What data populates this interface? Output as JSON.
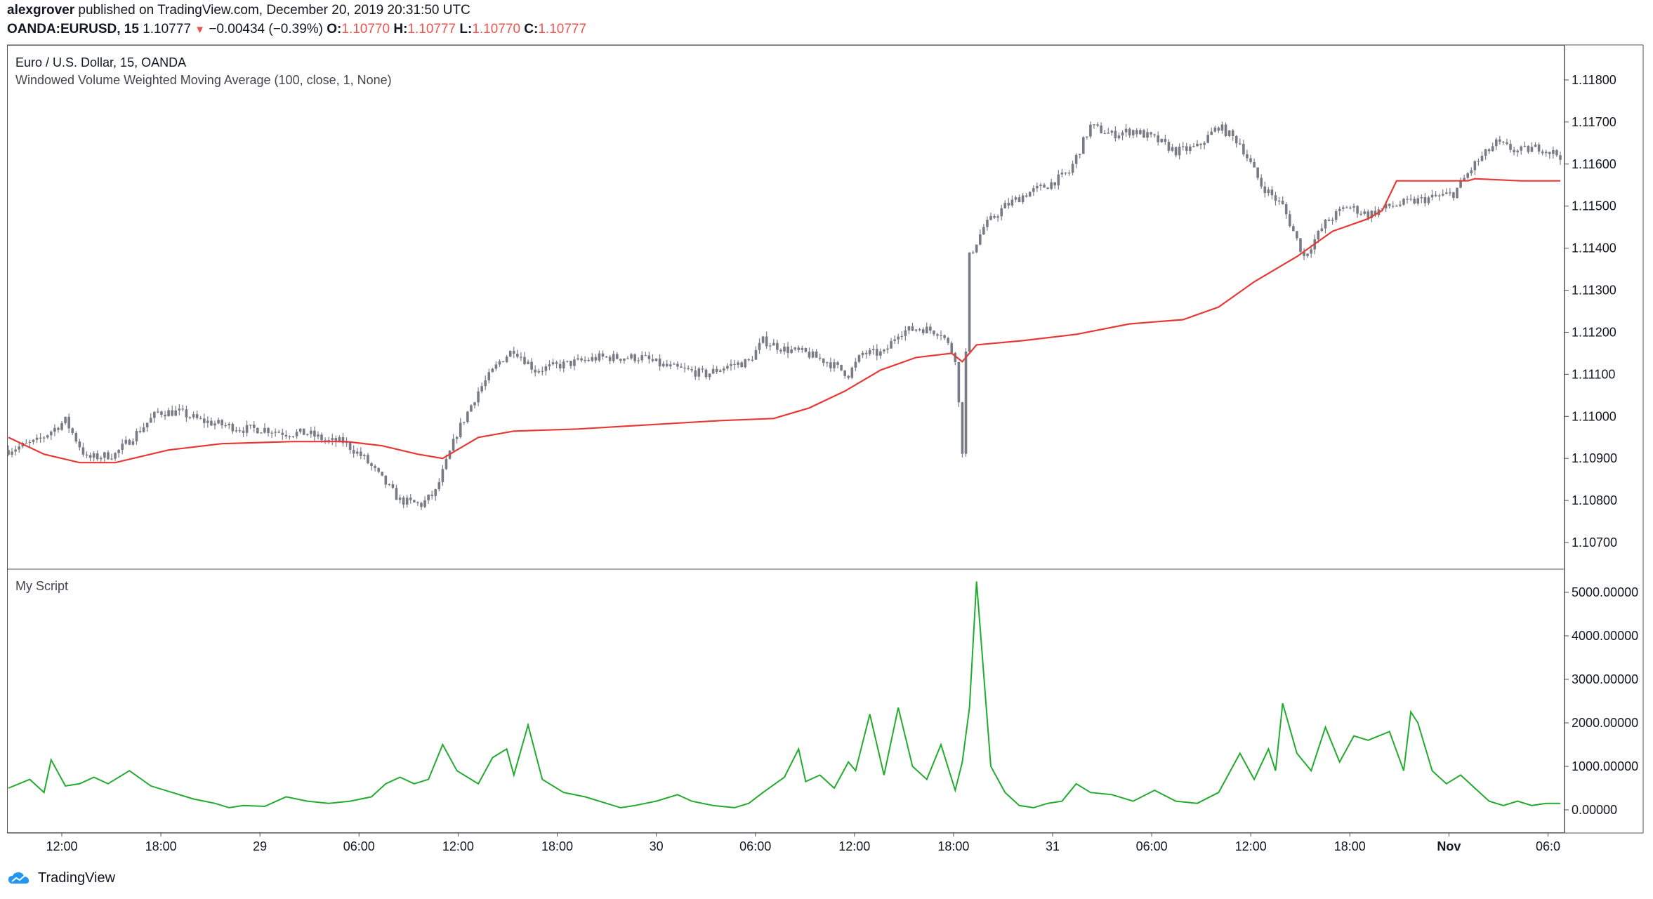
{
  "header": {
    "user": "alexgrover",
    "published": "published on TradingView.com, December 20, 2019 20:31:50 UTC",
    "symbol": "OANDA:EURUSD, 15",
    "last": "1.10777",
    "change_arrow": "down-triangle-icon",
    "change": "−0.00434 (−0.39%)",
    "o_label": "O:",
    "o": "1.10770",
    "h_label": "H:",
    "h": "1.10777",
    "l_label": "L:",
    "l": "1.10770",
    "c_label": "C:",
    "c": "1.10777"
  },
  "main_pane": {
    "title": "Euro / U.S. Dollar, 15, OANDA",
    "indicator": "Windowed Volume Weighted Moving Average (100, close, 1, None)"
  },
  "sub_pane": {
    "title": "My Script"
  },
  "footer": {
    "brand": "TradingView",
    "logo_icon": "tradingview-cloud-icon"
  },
  "colors": {
    "candle": "#787b86",
    "wvwma": "#e53935",
    "script_line": "#22ab2e",
    "down": "#ef5350"
  },
  "chart_data": [
    {
      "type": "candlestick",
      "title": "Euro / U.S. Dollar, 15, OANDA",
      "yticks": [
        "1.10700",
        "1.10800",
        "1.10900",
        "1.11000",
        "1.11100",
        "1.11200",
        "1.11300",
        "1.11400",
        "1.11500",
        "1.11600",
        "1.11700",
        "1.11800"
      ],
      "ylim": [
        1.1064,
        1.1188
      ],
      "xtick_labels": [
        "12:00",
        "18:00",
        "29",
        "06:00",
        "12:00",
        "18:00",
        "30",
        "06:00",
        "12:00",
        "18:00",
        "31",
        "06:00",
        "12:00",
        "18:00",
        "Nov",
        "06:0"
      ],
      "close_path": [
        [
          0,
          1.1092
        ],
        [
          8,
          1.1094
        ],
        [
          16,
          1.1099
        ],
        [
          22,
          1.109
        ],
        [
          30,
          1.1091
        ],
        [
          36,
          1.1096
        ],
        [
          42,
          1.1101
        ],
        [
          48,
          1.1101
        ],
        [
          54,
          1.1099
        ],
        [
          60,
          1.1098
        ],
        [
          66,
          1.1097
        ],
        [
          72,
          1.1097
        ],
        [
          78,
          1.1096
        ],
        [
          84,
          1.1096
        ],
        [
          90,
          1.1094
        ],
        [
          94,
          1.1094
        ],
        [
          100,
          1.109
        ],
        [
          106,
          1.1084
        ],
        [
          110,
          1.108
        ],
        [
          116,
          1.1079
        ],
        [
          120,
          1.1082
        ],
        [
          126,
          1.1096
        ],
        [
          132,
          1.1106
        ],
        [
          138,
          1.1113
        ],
        [
          142,
          1.1116
        ],
        [
          148,
          1.1111
        ],
        [
          154,
          1.1112
        ],
        [
          160,
          1.1113
        ],
        [
          166,
          1.1114
        ],
        [
          172,
          1.1114
        ],
        [
          178,
          1.1114
        ],
        [
          184,
          1.1112
        ],
        [
          190,
          1.1111
        ],
        [
          196,
          1.111
        ],
        [
          202,
          1.1112
        ],
        [
          208,
          1.1113
        ],
        [
          212,
          1.1118
        ],
        [
          218,
          1.1116
        ],
        [
          224,
          1.1115
        ],
        [
          230,
          1.1113
        ],
        [
          236,
          1.111
        ],
        [
          240,
          1.1115
        ],
        [
          246,
          1.1115
        ],
        [
          250,
          1.112
        ],
        [
          256,
          1.1121
        ],
        [
          262,
          1.112
        ],
        [
          266,
          1.1114
        ],
        [
          268,
          1.1092
        ],
        [
          270,
          1.1138
        ],
        [
          274,
          1.1145
        ],
        [
          280,
          1.115
        ],
        [
          286,
          1.1153
        ],
        [
          292,
          1.1155
        ],
        [
          298,
          1.1158
        ],
        [
          304,
          1.1169
        ],
        [
          310,
          1.1167
        ],
        [
          316,
          1.1168
        ],
        [
          322,
          1.1166
        ],
        [
          328,
          1.1163
        ],
        [
          334,
          1.1164
        ],
        [
          340,
          1.1169
        ],
        [
          346,
          1.1165
        ],
        [
          352,
          1.1155
        ],
        [
          358,
          1.115
        ],
        [
          364,
          1.1138
        ],
        [
          370,
          1.1146
        ],
        [
          376,
          1.115
        ],
        [
          382,
          1.1148
        ],
        [
          388,
          1.115
        ],
        [
          394,
          1.1151
        ],
        [
          400,
          1.1152
        ],
        [
          406,
          1.1153
        ],
        [
          412,
          1.116
        ],
        [
          418,
          1.1165
        ],
        [
          424,
          1.1163
        ],
        [
          430,
          1.1164
        ],
        [
          436,
          1.1162
        ]
      ],
      "overlay": {
        "name": "Windowed Volume Weighted Moving Average (100, close, 1, None)",
        "points": [
          [
            0,
            1.1095
          ],
          [
            10,
            1.1091
          ],
          [
            20,
            1.1089
          ],
          [
            30,
            1.1089
          ],
          [
            45,
            1.1092
          ],
          [
            60,
            1.10935
          ],
          [
            80,
            1.1094
          ],
          [
            95,
            1.1094
          ],
          [
            105,
            1.1093
          ],
          [
            115,
            1.1091
          ],
          [
            122,
            1.109
          ],
          [
            132,
            1.1095
          ],
          [
            142,
            1.10965
          ],
          [
            160,
            1.1097
          ],
          [
            180,
            1.1098
          ],
          [
            200,
            1.1099
          ],
          [
            215,
            1.10995
          ],
          [
            225,
            1.1102
          ],
          [
            235,
            1.1106
          ],
          [
            245,
            1.1111
          ],
          [
            255,
            1.1114
          ],
          [
            265,
            1.1115
          ],
          [
            268,
            1.1113
          ],
          [
            272,
            1.1117
          ],
          [
            285,
            1.1118
          ],
          [
            300,
            1.11195
          ],
          [
            315,
            1.1122
          ],
          [
            330,
            1.1123
          ],
          [
            340,
            1.1126
          ],
          [
            350,
            1.1132
          ],
          [
            362,
            1.1138
          ],
          [
            372,
            1.1144
          ],
          [
            382,
            1.1147
          ],
          [
            386,
            1.1149
          ],
          [
            390,
            1.1156
          ],
          [
            400,
            1.1156
          ],
          [
            410,
            1.1156
          ],
          [
            412,
            1.11565
          ],
          [
            425,
            1.1156
          ],
          [
            436,
            1.1156
          ]
        ]
      }
    },
    {
      "type": "line",
      "title": "My Script",
      "yticks": [
        "0.00000",
        "1000.00000",
        "2000.00000",
        "3000.00000",
        "4000.00000",
        "5000.00000"
      ],
      "ylim": [
        -500,
        5500
      ],
      "series": [
        {
          "values": [
            [
              0,
              500
            ],
            [
              6,
              700
            ],
            [
              10,
              400
            ],
            [
              12,
              1150
            ],
            [
              16,
              550
            ],
            [
              20,
              600
            ],
            [
              24,
              750
            ],
            [
              28,
              600
            ],
            [
              34,
              900
            ],
            [
              40,
              550
            ],
            [
              46,
              400
            ],
            [
              52,
              250
            ],
            [
              58,
              150
            ],
            [
              62,
              50
            ],
            [
              66,
              100
            ],
            [
              72,
              80
            ],
            [
              78,
              300
            ],
            [
              84,
              200
            ],
            [
              90,
              150
            ],
            [
              96,
              200
            ],
            [
              102,
              300
            ],
            [
              106,
              600
            ],
            [
              110,
              750
            ],
            [
              114,
              600
            ],
            [
              118,
              700
            ],
            [
              122,
              1500
            ],
            [
              126,
              900
            ],
            [
              132,
              600
            ],
            [
              136,
              1200
            ],
            [
              140,
              1400
            ],
            [
              142,
              800
            ],
            [
              146,
              1950
            ],
            [
              150,
              700
            ],
            [
              156,
              400
            ],
            [
              162,
              300
            ],
            [
              168,
              150
            ],
            [
              172,
              50
            ],
            [
              176,
              100
            ],
            [
              182,
              200
            ],
            [
              188,
              350
            ],
            [
              192,
              200
            ],
            [
              198,
              100
            ],
            [
              204,
              50
            ],
            [
              208,
              150
            ],
            [
              212,
              400
            ],
            [
              218,
              750
            ],
            [
              222,
              1400
            ],
            [
              224,
              650
            ],
            [
              228,
              800
            ],
            [
              232,
              500
            ],
            [
              236,
              1100
            ],
            [
              238,
              900
            ],
            [
              242,
              2200
            ],
            [
              246,
              800
            ],
            [
              250,
              2350
            ],
            [
              254,
              1000
            ],
            [
              258,
              700
            ],
            [
              262,
              1500
            ],
            [
              266,
              450
            ],
            [
              268,
              1100
            ],
            [
              270,
              2350
            ],
            [
              272,
              5250
            ],
            [
              276,
              1000
            ],
            [
              280,
              400
            ],
            [
              284,
              100
            ],
            [
              288,
              50
            ],
            [
              292,
              150
            ],
            [
              296,
              200
            ],
            [
              300,
              600
            ],
            [
              304,
              400
            ],
            [
              310,
              350
            ],
            [
              316,
              200
            ],
            [
              322,
              450
            ],
            [
              328,
              200
            ],
            [
              334,
              150
            ],
            [
              340,
              400
            ],
            [
              346,
              1300
            ],
            [
              350,
              700
            ],
            [
              354,
              1400
            ],
            [
              356,
              900
            ],
            [
              358,
              2450
            ],
            [
              362,
              1300
            ],
            [
              366,
              900
            ],
            [
              370,
              1900
            ],
            [
              374,
              1100
            ],
            [
              378,
              1700
            ],
            [
              382,
              1600
            ],
            [
              388,
              1800
            ],
            [
              392,
              900
            ],
            [
              394,
              2250
            ],
            [
              396,
              2000
            ],
            [
              400,
              900
            ],
            [
              404,
              600
            ],
            [
              408,
              800
            ],
            [
              412,
              500
            ],
            [
              416,
              200
            ],
            [
              420,
              100
            ],
            [
              424,
              200
            ],
            [
              428,
              100
            ],
            [
              432,
              150
            ],
            [
              436,
              150
            ]
          ]
        }
      ]
    }
  ]
}
